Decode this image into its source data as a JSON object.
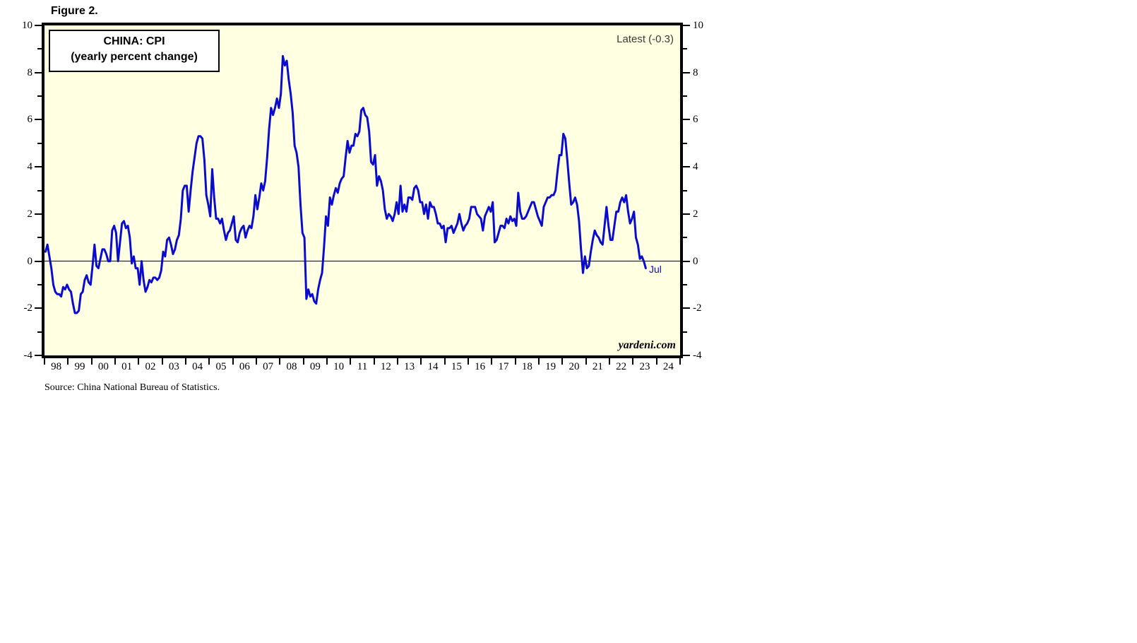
{
  "figure_label": "Figure 2.",
  "chart": {
    "title_line1": "CHINA: CPI",
    "title_line2": "(yearly percent change)",
    "latest_label": "Latest (-0.3)",
    "last_point_label": "Jul",
    "branding": "yardeni.com",
    "colors": {
      "line": "#0B0BD0",
      "plot_bg": "#FFFFE1",
      "border": "#000000",
      "latest_text": "#3a3a3a"
    },
    "y_axis": {
      "major_ticks": [
        10,
        8,
        6,
        4,
        2,
        0,
        -2,
        -4
      ],
      "minor_ticks": [
        9,
        7,
        5,
        3,
        1,
        -1,
        -3
      ],
      "range": [
        -4,
        10
      ]
    },
    "x_axis": {
      "year_labels": [
        "98",
        "99",
        "00",
        "01",
        "02",
        "03",
        "04",
        "05",
        "06",
        "07",
        "08",
        "09",
        "10",
        "11",
        "12",
        "13",
        "14",
        "15",
        "16",
        "17",
        "18",
        "19",
        "20",
        "21",
        "22",
        "23",
        "24"
      ]
    }
  },
  "source_note": "Source: China National Bureau of Statistics.",
  "chart_data": {
    "type": "line",
    "title": "CHINA: CPI (yearly percent change)",
    "ylabel": "yearly percent change (%)",
    "frequency": "monthly",
    "start_month": "1998-01",
    "end_month": "2023-07",
    "ylim": [
      -4,
      10
    ],
    "xlim_years": [
      1998,
      2025
    ],
    "grid": "zero-line only",
    "legend_position": "none",
    "latest_value": -0.3,
    "latest_month_label": "Jul",
    "x_years": [
      "1998",
      "1999",
      "2000",
      "2001",
      "2002",
      "2003",
      "2004",
      "2005",
      "2006",
      "2007",
      "2008",
      "2009",
      "2010",
      "2011",
      "2012",
      "2013",
      "2014",
      "2015",
      "2016",
      "2017",
      "2018",
      "2019",
      "2020",
      "2021",
      "2022",
      "2023"
    ],
    "values": [
      0.4,
      0.7,
      0.2,
      -0.3,
      -1.0,
      -1.3,
      -1.4,
      -1.4,
      -1.5,
      -1.1,
      -1.2,
      -1.0,
      -1.2,
      -1.3,
      -1.8,
      -2.2,
      -2.2,
      -2.1,
      -1.4,
      -1.3,
      -0.8,
      -0.6,
      -0.9,
      -1.0,
      -0.2,
      0.7,
      -0.2,
      -0.3,
      0.1,
      0.5,
      0.5,
      0.3,
      0.0,
      0.0,
      1.3,
      1.5,
      1.2,
      0.0,
      0.8,
      1.6,
      1.7,
      1.4,
      1.5,
      1.0,
      -0.1,
      0.2,
      -0.3,
      -0.3,
      -1.0,
      0.0,
      -0.8,
      -1.3,
      -1.1,
      -0.8,
      -0.9,
      -0.7,
      -0.7,
      -0.8,
      -0.7,
      -0.4,
      0.4,
      0.2,
      0.9,
      1.0,
      0.7,
      0.3,
      0.5,
      0.9,
      1.1,
      1.8,
      3.0,
      3.2,
      3.2,
      2.1,
      3.0,
      3.8,
      4.4,
      5.0,
      5.3,
      5.3,
      5.2,
      4.3,
      2.8,
      2.4,
      1.9,
      3.9,
      2.7,
      1.8,
      1.8,
      1.6,
      1.8,
      1.3,
      0.9,
      1.2,
      1.3,
      1.6,
      1.9,
      0.9,
      0.8,
      1.2,
      1.4,
      1.5,
      1.0,
      1.3,
      1.5,
      1.4,
      1.9,
      2.8,
      2.2,
      2.7,
      3.3,
      3.0,
      3.4,
      4.4,
      5.6,
      6.5,
      6.2,
      6.5,
      6.9,
      6.5,
      7.1,
      8.7,
      8.3,
      8.5,
      7.7,
      7.1,
      6.3,
      4.9,
      4.6,
      4.0,
      2.4,
      1.2,
      1.0,
      -1.6,
      -1.2,
      -1.5,
      -1.4,
      -1.7,
      -1.8,
      -1.2,
      -0.8,
      -0.5,
      0.6,
      1.9,
      1.5,
      2.7,
      2.4,
      2.8,
      3.1,
      2.9,
      3.3,
      3.5,
      3.6,
      4.4,
      5.1,
      4.6,
      4.9,
      4.9,
      5.4,
      5.3,
      5.5,
      6.4,
      6.5,
      6.2,
      6.1,
      5.5,
      4.2,
      4.1,
      4.5,
      3.2,
      3.6,
      3.4,
      3.0,
      2.2,
      1.8,
      2.0,
      1.9,
      1.7,
      2.0,
      2.5,
      2.0,
      3.2,
      2.1,
      2.4,
      2.1,
      2.7,
      2.7,
      2.6,
      3.1,
      3.2,
      3.0,
      2.5,
      2.5,
      2.0,
      2.4,
      1.8,
      2.5,
      2.3,
      2.3,
      2.0,
      1.6,
      1.6,
      1.4,
      1.5,
      0.8,
      1.4,
      1.4,
      1.5,
      1.2,
      1.4,
      1.6,
      2.0,
      1.6,
      1.3,
      1.5,
      1.6,
      1.8,
      2.3,
      2.3,
      2.3,
      2.0,
      1.9,
      1.8,
      1.3,
      1.9,
      2.1,
      2.3,
      2.1,
      2.5,
      0.8,
      0.9,
      1.2,
      1.5,
      1.5,
      1.4,
      1.8,
      1.6,
      1.9,
      1.7,
      1.8,
      1.5,
      2.9,
      2.1,
      1.8,
      1.8,
      1.9,
      2.1,
      2.3,
      2.5,
      2.5,
      2.2,
      1.9,
      1.7,
      1.5,
      2.3,
      2.5,
      2.7,
      2.7,
      2.8,
      2.8,
      3.0,
      3.8,
      4.5,
      4.5,
      5.4,
      5.2,
      4.3,
      3.3,
      2.4,
      2.5,
      2.7,
      2.4,
      1.7,
      0.5,
      -0.5,
      0.2,
      -0.3,
      -0.2,
      0.4,
      0.9,
      1.3,
      1.1,
      1.0,
      0.8,
      0.7,
      1.5,
      2.3,
      1.5,
      0.9,
      0.9,
      1.5,
      2.1,
      2.1,
      2.5,
      2.7,
      2.5,
      2.8,
      2.1,
      1.6,
      1.8,
      2.1,
      1.0,
      0.7,
      0.1,
      0.2,
      0.0,
      -0.3
    ]
  }
}
